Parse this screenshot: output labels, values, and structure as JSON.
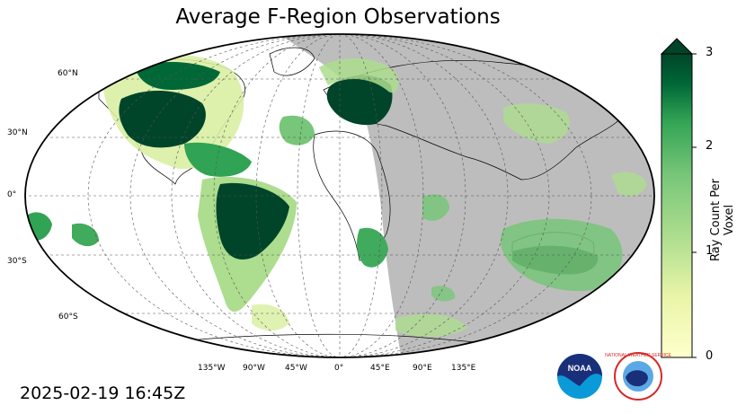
{
  "title": "Average F-Region Observations",
  "timestamp": "2025-02-19 16:45Z",
  "colorbar": {
    "label": "Ray Count Per Voxel",
    "ticks": [
      "0",
      "1",
      "2",
      "3"
    ],
    "min": 0,
    "max": 3,
    "extend": "max",
    "colors": {
      "low": "#ffffcc",
      "mid": "#78c679",
      "high": "#004529"
    }
  },
  "map": {
    "projection": "Robinson (global)",
    "night_shading_color": "#bdbdbd",
    "latitude_labels": [
      "60°N",
      "30°N",
      "0°",
      "30°S",
      "60°S"
    ],
    "longitude_labels": [
      "135°W",
      "90°W",
      "45°W",
      "0°",
      "45°E",
      "90°E",
      "135°E"
    ]
  },
  "logos": [
    {
      "name": "NOAA",
      "text": "NOAA"
    },
    {
      "name": "National Weather Service",
      "text": "NATIONAL WEATHER SERVICE"
    }
  ]
}
